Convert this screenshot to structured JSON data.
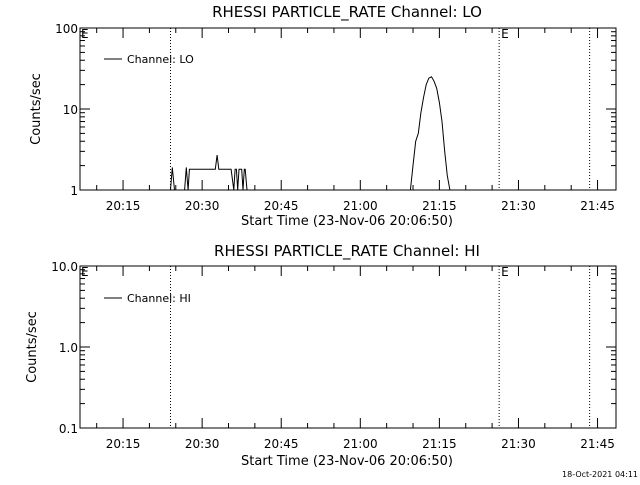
{
  "footer_timestamp": "18-Oct-2021 04:11",
  "chart_data": [
    {
      "type": "line",
      "title": "RHESSI PARTICLE_RATE Channel: LO",
      "xlabel": "Start Time (23-Nov-06 20:06:50)",
      "ylabel": "Counts/sec",
      "yscale": "log",
      "ylim": [
        1,
        100
      ],
      "yticks": [
        {
          "value": 1,
          "label": "1"
        },
        {
          "value": 10,
          "label": "10"
        },
        {
          "value": 100,
          "label": "100"
        }
      ],
      "xlim": [
        "20:06:50",
        "21:48:30"
      ],
      "xticks": [
        "20:15",
        "20:30",
        "20:45",
        "21:00",
        "21:15",
        "21:30",
        "21:45"
      ],
      "legend": {
        "position": "top-left",
        "label": "Channel: LO"
      },
      "markers": [
        {
          "time": "20:24:00",
          "label": ""
        },
        {
          "time": "21:26:20",
          "label": "E"
        },
        {
          "time": "21:43:30",
          "label": ""
        }
      ],
      "left_marker_label": "E",
      "series": [
        {
          "name": "Channel: LO",
          "x": [
            "20:24:00",
            "20:24:20",
            "20:24:45",
            "20:25:10",
            "20:25:40",
            "20:26:10",
            "20:26:40",
            "20:27:00",
            "20:27:20",
            "20:27:35",
            "20:27:50",
            "20:28:30",
            "20:30:00",
            "20:31:30",
            "20:32:30",
            "20:32:50",
            "20:33:10",
            "20:33:30",
            "20:34:00",
            "20:35:30",
            "20:36:00",
            "20:36:15",
            "20:36:30",
            "20:36:45",
            "20:37:00",
            "20:37:15",
            "20:37:30",
            "20:37:45",
            "20:38:00",
            "20:38:10",
            "20:38:30",
            "21:09:30",
            "21:10:00",
            "21:10:30",
            "21:11:00",
            "21:11:30",
            "21:12:00",
            "21:12:30",
            "21:13:00",
            "21:13:30",
            "21:14:00",
            "21:14:30",
            "21:15:00",
            "21:15:30",
            "21:16:00",
            "21:16:30",
            "21:17:00",
            "21:17:30",
            "21:18:00",
            "21:18:30",
            "21:19:00"
          ],
          "values": [
            1,
            1.9,
            1,
            1,
            1,
            1,
            1,
            1.9,
            1,
            1.8,
            1.8,
            1.8,
            1.8,
            1.8,
            1.8,
            2.7,
            1.8,
            1.8,
            1.8,
            1.8,
            1,
            1.8,
            1.8,
            1,
            1.8,
            1.8,
            1.8,
            1,
            1.8,
            1.8,
            1,
            1,
            2,
            4,
            5,
            9,
            14,
            20,
            24,
            25,
            22,
            18,
            12,
            7,
            3,
            1.5,
            1,
            1,
            1,
            1,
            1
          ]
        }
      ]
    },
    {
      "type": "line",
      "title": "RHESSI PARTICLE_RATE Channel: HI",
      "xlabel": "Start Time (23-Nov-06 20:06:50)",
      "ylabel": "Counts/sec",
      "yscale": "log",
      "ylim": [
        0.1,
        10
      ],
      "yticks": [
        {
          "value": 0.1,
          "label": "0.1"
        },
        {
          "value": 1,
          "label": "1.0"
        },
        {
          "value": 10,
          "label": "10.0"
        }
      ],
      "xlim": [
        "20:06:50",
        "21:48:30"
      ],
      "xticks": [
        "20:15",
        "20:30",
        "20:45",
        "21:00",
        "21:15",
        "21:30",
        "21:45"
      ],
      "legend": {
        "position": "top-left",
        "label": "Channel: HI"
      },
      "markers": [
        {
          "time": "20:24:00",
          "label": ""
        },
        {
          "time": "21:26:20",
          "label": "E"
        },
        {
          "time": "21:43:30",
          "label": ""
        }
      ],
      "left_marker_label": "E",
      "series": [
        {
          "name": "Channel: HI",
          "x": [],
          "values": []
        }
      ]
    }
  ]
}
